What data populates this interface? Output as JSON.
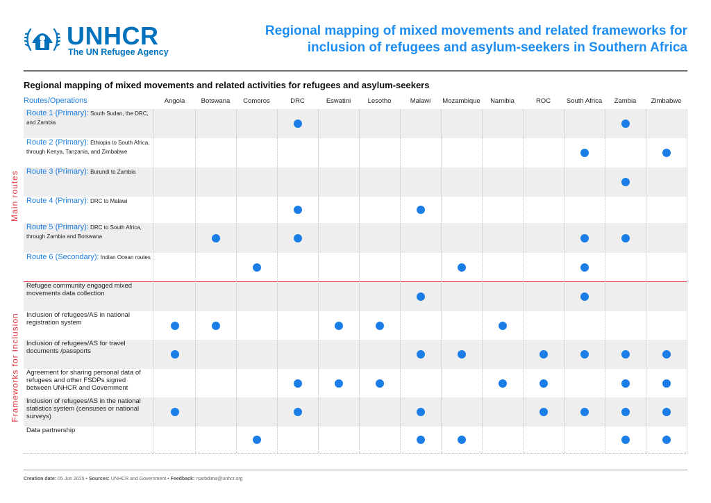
{
  "logo": {
    "name": "UNHCR",
    "tagline": "The UN Refugee Agency",
    "emblem_icon": "unhcr-emblem-icon"
  },
  "title_line1": "Regional mapping of mixed movements and related frameworks for",
  "title_line2": "inclusion of refugees and asylum-seekers in Southern Africa",
  "subtitle": "Regional mapping of mixed movements and related activities for refugees and asylum-seekers",
  "first_col_header": "Routes/Operations",
  "columns": [
    "Angola",
    "Botswana",
    "Comoros",
    "DRC",
    "Eswatini",
    "Lesotho",
    "Malawi",
    "Mozambique",
    "Namibia",
    "ROC",
    "South Africa",
    "Zambia",
    "Zimbabwe"
  ],
  "section_labels": {
    "main": "Main routes",
    "frameworks": "Frameworks for inclusion"
  },
  "routes": [
    {
      "name": "Route 1 (Primary):",
      "desc": "South Sudan, the DRC, and Zambia",
      "marks": [
        3,
        11
      ]
    },
    {
      "name": "Route 2 (Primary):",
      "desc": "Ethiopia to South Africa, through Kenya, Tanzania, and Zimbabwe",
      "marks": [
        10,
        12
      ]
    },
    {
      "name": "Route 3 (Primary):",
      "desc": "Burundi to Zambia",
      "marks": [
        11
      ]
    },
    {
      "name": "Route 4 (Primary):",
      "desc": "DRC to Malawi",
      "marks": [
        3,
        6
      ]
    },
    {
      "name": "Route 5 (Primary):",
      "desc": "DRC to South Africa, through Zambia and Botswana",
      "marks": [
        1,
        3,
        10,
        11
      ]
    },
    {
      "name": "Route 6 (Secondary):",
      "desc": "Indian Ocean routes",
      "marks": [
        2,
        7,
        10
      ]
    }
  ],
  "frameworks": [
    {
      "label": "Refugee community engaged mixed movements data collection",
      "marks": [
        6,
        10
      ]
    },
    {
      "label": "Inclusion of refugees/AS in national registration system",
      "marks": [
        0,
        1,
        4,
        5,
        8
      ]
    },
    {
      "label": "Inclusion of refugees/AS for travel documents /passports",
      "marks": [
        0,
        6,
        7,
        9,
        10,
        11,
        12
      ]
    },
    {
      "label": "Agreement for sharing personal data of refugees and other FSDPs signed between UNHCR and Government",
      "marks": [
        3,
        4,
        5,
        8,
        9,
        11,
        12
      ]
    },
    {
      "label": "Inclusion of refugees/AS in the national statistics system (censuses or national surveys)",
      "marks": [
        0,
        3,
        6,
        9,
        10,
        11,
        12
      ]
    },
    {
      "label": "Data partnership",
      "marks": [
        2,
        6,
        7,
        11,
        12
      ]
    }
  ],
  "footer": {
    "creation_label": "Creation date:",
    "creation_value": "05 Jun 2025",
    "sources_label": "Sources:",
    "sources_value": "UNHCR and Government",
    "feedback_label": "Feedback:",
    "feedback_value": "rsarbdima@unhcr.org",
    "separator": "•"
  },
  "colors": {
    "accent": "#1a7ee6",
    "title": "#1d8df0",
    "logo": "#0072bc",
    "divider": "#e3343f",
    "shade": "#eeeeee"
  }
}
